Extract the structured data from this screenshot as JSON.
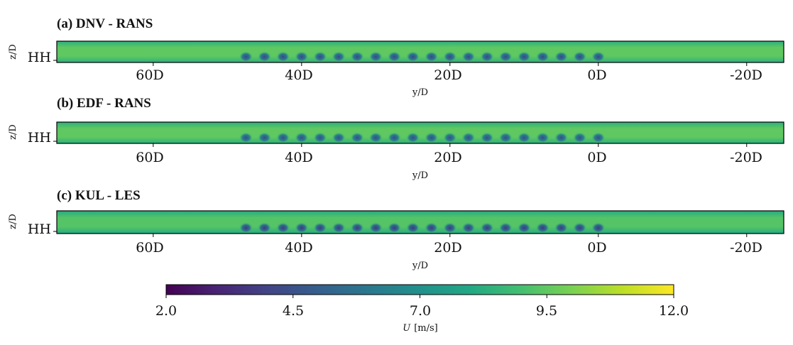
{
  "chart_data": [
    {
      "type": "heatmap",
      "title": "(a) DNV - RANS",
      "ylabel": "z/D",
      "ytick": "HH",
      "xlabel": "y/D",
      "xticks": [
        "60D",
        "40D",
        "20D",
        "0D",
        "-20D"
      ],
      "xtick_values": [
        60,
        40,
        20,
        0,
        -20
      ],
      "xlim": [
        73,
        -25
      ],
      "turbine_positions_yD": [
        47.5,
        45,
        42.5,
        40,
        37.5,
        35,
        32.5,
        30,
        27.5,
        25,
        22.5,
        20,
        17.5,
        15,
        12.5,
        10,
        7.5,
        5,
        2.5,
        0
      ],
      "ambient_U": 9.5,
      "wake_U": 4.0
    },
    {
      "type": "heatmap",
      "title": "(b) EDF - RANS",
      "ylabel": "z/D",
      "ytick": "HH",
      "xlabel": "y/D",
      "xticks": [
        "60D",
        "40D",
        "20D",
        "0D",
        "-20D"
      ],
      "xtick_values": [
        60,
        40,
        20,
        0,
        -20
      ],
      "xlim": [
        73,
        -25
      ],
      "turbine_positions_yD": [
        47.5,
        45,
        42.5,
        40,
        37.5,
        35,
        32.5,
        30,
        27.5,
        25,
        22.5,
        20,
        17.5,
        15,
        12.5,
        10,
        7.5,
        5,
        2.5,
        0
      ],
      "ambient_U": 9.5,
      "wake_U": 4.2
    },
    {
      "type": "heatmap",
      "title": "(c) KUL - LES",
      "ylabel": "z/D",
      "ytick": "HH",
      "xlabel": "y/D",
      "xticks": [
        "60D",
        "40D",
        "20D",
        "0D",
        "-20D"
      ],
      "xtick_values": [
        60,
        40,
        20,
        0,
        -20
      ],
      "xlim": [
        73,
        -25
      ],
      "turbine_positions_yD": [
        47.5,
        45,
        42.5,
        40,
        37.5,
        35,
        32.5,
        30,
        27.5,
        25,
        22.5,
        20,
        17.5,
        15,
        12.5,
        10,
        7.5,
        5,
        2.5,
        0
      ],
      "ambient_U": 9.3,
      "wake_U": 3.6
    }
  ],
  "colorbar": {
    "colormap": "viridis",
    "min": 2.0,
    "max": 12.0,
    "ticks": [
      "2.0",
      "4.5",
      "7.0",
      "9.5",
      "12.0"
    ],
    "tick_values": [
      2.0,
      4.5,
      7.0,
      9.5,
      12.0
    ],
    "label_var": "U",
    "label_unit": "[m/s]"
  }
}
